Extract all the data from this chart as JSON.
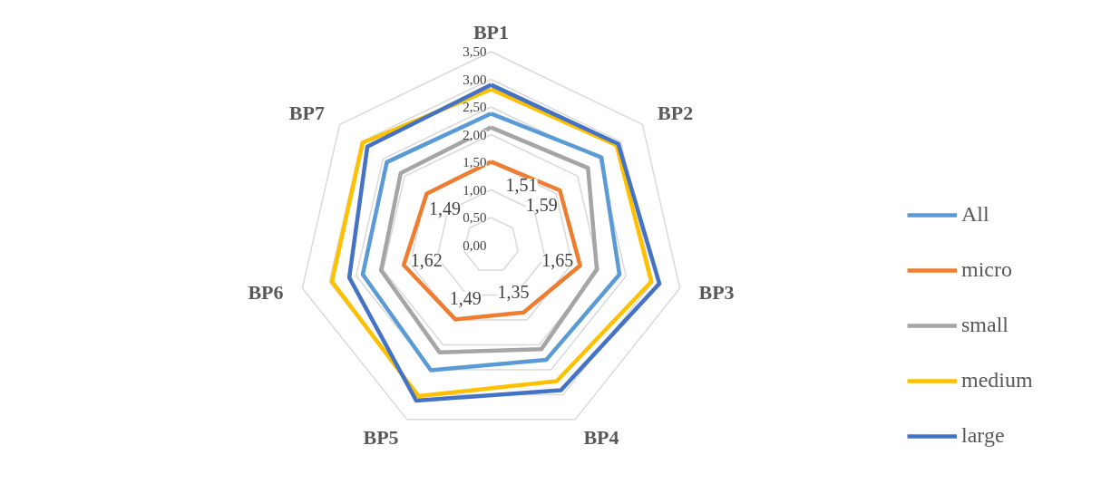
{
  "chart_data": {
    "type": "radar",
    "categories": [
      "BP1",
      "BP2",
      "BP3",
      "BP4",
      "BP5",
      "BP6",
      "BP7"
    ],
    "ylim": [
      0,
      3.5
    ],
    "yticks": [
      {
        "value": 0,
        "label": "0,00"
      },
      {
        "value": 0.5,
        "label": "0,50"
      },
      {
        "value": 1,
        "label": "1,00"
      },
      {
        "value": 1.5,
        "label": "1,50"
      },
      {
        "value": 2,
        "label": "2,00"
      },
      {
        "value": 2.5,
        "label": "2,50"
      },
      {
        "value": 3,
        "label": "3,00"
      },
      {
        "value": 3.5,
        "label": "3,50"
      }
    ],
    "grid": true,
    "legend": "right",
    "series": [
      {
        "name": "All",
        "color": "#5b9bd5",
        "values": [
          2.38,
          2.55,
          2.38,
          2.3,
          2.51,
          2.38,
          2.41
        ]
      },
      {
        "name": "micro",
        "color": "#ed7d31",
        "values": [
          1.51,
          1.59,
          1.65,
          1.35,
          1.49,
          1.62,
          1.49
        ],
        "value_labels": [
          "1,51",
          "1,59",
          "1,65",
          "1,35",
          "1,49",
          "1,62",
          "1,49"
        ]
      },
      {
        "name": "small",
        "color": "#a5a5a5",
        "values": [
          2.13,
          2.24,
          1.96,
          2.09,
          2.15,
          2.04,
          2.09
        ]
      },
      {
        "name": "medium",
        "color": "#ffc000",
        "values": [
          2.82,
          2.9,
          2.97,
          2.73,
          3.03,
          2.95,
          2.97
        ]
      },
      {
        "name": "large",
        "color": "#4472c4",
        "values": [
          2.9,
          2.94,
          3.12,
          2.91,
          3.12,
          2.63,
          2.86
        ]
      }
    ]
  }
}
